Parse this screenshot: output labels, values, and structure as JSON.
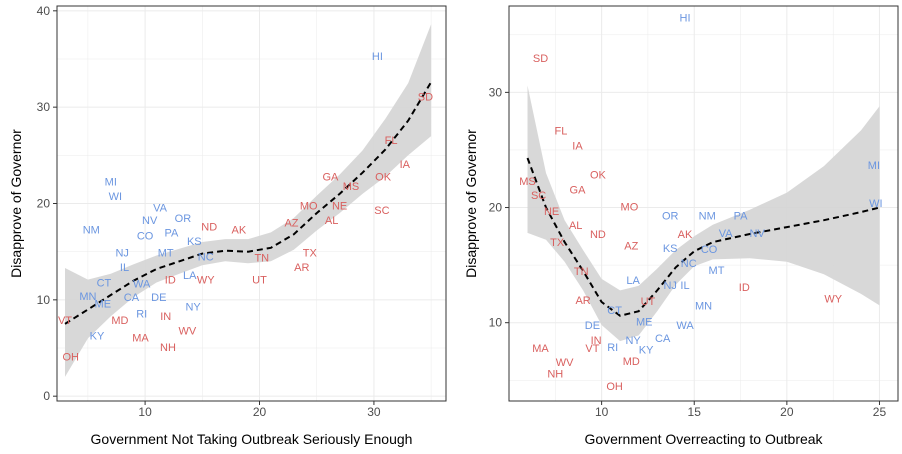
{
  "chart_data": [
    {
      "type": "scatter",
      "title": "",
      "xlabel": "Government Not Taking Outbreak Seriously Enough",
      "ylabel": "Disapprove of Governor",
      "xlim": [
        2.3,
        36.3
      ],
      "ylim": [
        -0.5,
        40.5
      ],
      "xticks": [
        10,
        20,
        30
      ],
      "yticks": [
        0,
        10,
        20,
        30,
        40
      ],
      "grid": true,
      "legend": "none",
      "colors": {
        "blue": "#6b96e0",
        "red": "#d9605f",
        "band": "#d4d4d4",
        "line": "#000000"
      },
      "trend": {
        "x": [
          3,
          5,
          7,
          9,
          11,
          13,
          15,
          17,
          19,
          21,
          23,
          25,
          27,
          29,
          31,
          33,
          35
        ],
        "y": [
          7.5,
          9.0,
          10.5,
          12.0,
          13.2,
          14.0,
          14.8,
          15.1,
          15.0,
          15.4,
          16.8,
          19.0,
          21.0,
          23.2,
          25.6,
          28.6,
          32.6
        ],
        "lower": [
          2.0,
          6.0,
          8.3,
          10.3,
          11.8,
          12.7,
          13.6,
          14.0,
          13.8,
          14.0,
          15.2,
          17.2,
          19.0,
          21.0,
          22.8,
          25.0,
          27.0
        ],
        "upper": [
          13.3,
          12.1,
          12.7,
          13.7,
          14.6,
          15.3,
          16.0,
          16.3,
          16.3,
          17.0,
          18.5,
          20.8,
          23.0,
          25.5,
          28.8,
          32.5,
          38.6
        ]
      },
      "points": [
        {
          "label": "HI",
          "x": 30.3,
          "y": 35.2,
          "color": "blue"
        },
        {
          "label": "SD",
          "x": 34.5,
          "y": 31.0,
          "color": "red"
        },
        {
          "label": "FL",
          "x": 31.5,
          "y": 26.5,
          "color": "red"
        },
        {
          "label": "IA",
          "x": 32.7,
          "y": 24.0,
          "color": "red"
        },
        {
          "label": "GA",
          "x": 26.2,
          "y": 22.7,
          "color": "red"
        },
        {
          "label": "OK",
          "x": 30.8,
          "y": 22.7,
          "color": "red"
        },
        {
          "label": "MS",
          "x": 28.0,
          "y": 21.7,
          "color": "red"
        },
        {
          "label": "MO",
          "x": 24.3,
          "y": 19.7,
          "color": "red"
        },
        {
          "label": "NE",
          "x": 27.0,
          "y": 19.7,
          "color": "red"
        },
        {
          "label": "SC",
          "x": 30.7,
          "y": 19.2,
          "color": "red"
        },
        {
          "label": "AZ",
          "x": 22.8,
          "y": 17.9,
          "color": "red"
        },
        {
          "label": "AL",
          "x": 26.3,
          "y": 18.2,
          "color": "red"
        },
        {
          "label": "ND",
          "x": 15.6,
          "y": 17.5,
          "color": "red"
        },
        {
          "label": "AK",
          "x": 18.2,
          "y": 17.2,
          "color": "red"
        },
        {
          "label": "TX",
          "x": 24.4,
          "y": 14.8,
          "color": "red"
        },
        {
          "label": "TN",
          "x": 20.2,
          "y": 14.3,
          "color": "red"
        },
        {
          "label": "AR",
          "x": 23.7,
          "y": 13.3,
          "color": "red"
        },
        {
          "label": "UT",
          "x": 20.0,
          "y": 12.0,
          "color": "red"
        },
        {
          "label": "WY",
          "x": 15.3,
          "y": 12.0,
          "color": "red"
        },
        {
          "label": "ID",
          "x": 12.2,
          "y": 12.0,
          "color": "red"
        },
        {
          "label": "MI",
          "x": 7.0,
          "y": 22.2,
          "color": "blue"
        },
        {
          "label": "WI",
          "x": 7.4,
          "y": 20.7,
          "color": "blue"
        },
        {
          "label": "NM",
          "x": 5.3,
          "y": 17.2,
          "color": "blue"
        },
        {
          "label": "VA",
          "x": 11.3,
          "y": 19.5,
          "color": "blue"
        },
        {
          "label": "NV",
          "x": 10.4,
          "y": 18.2,
          "color": "blue"
        },
        {
          "label": "OR",
          "x": 13.3,
          "y": 18.4,
          "color": "blue"
        },
        {
          "label": "PA",
          "x": 12.3,
          "y": 16.9,
          "color": "blue"
        },
        {
          "label": "CO",
          "x": 10.0,
          "y": 16.6,
          "color": "blue"
        },
        {
          "label": "NJ",
          "x": 8.0,
          "y": 14.8,
          "color": "blue"
        },
        {
          "label": "KS",
          "x": 14.3,
          "y": 16.0,
          "color": "blue"
        },
        {
          "label": "MT",
          "x": 11.8,
          "y": 14.8,
          "color": "blue"
        },
        {
          "label": "NC",
          "x": 15.3,
          "y": 14.4,
          "color": "blue"
        },
        {
          "label": "IL",
          "x": 8.2,
          "y": 13.3,
          "color": "blue"
        },
        {
          "label": "LA",
          "x": 13.9,
          "y": 12.5,
          "color": "blue"
        },
        {
          "label": "CT",
          "x": 6.4,
          "y": 11.7,
          "color": "blue"
        },
        {
          "label": "WA",
          "x": 9.7,
          "y": 11.6,
          "color": "blue"
        },
        {
          "label": "MN",
          "x": 5.0,
          "y": 10.3,
          "color": "blue"
        },
        {
          "label": "CA",
          "x": 8.8,
          "y": 10.2,
          "color": "blue"
        },
        {
          "label": "DE",
          "x": 11.2,
          "y": 10.2,
          "color": "blue"
        },
        {
          "label": "ME",
          "x": 6.3,
          "y": 9.5,
          "color": "blue"
        },
        {
          "label": "NY",
          "x": 14.2,
          "y": 9.2,
          "color": "blue"
        },
        {
          "label": "RI",
          "x": 9.7,
          "y": 8.5,
          "color": "blue"
        },
        {
          "label": "VT",
          "x": 3.0,
          "y": 7.8,
          "color": "red"
        },
        {
          "label": "MD",
          "x": 7.8,
          "y": 7.8,
          "color": "red"
        },
        {
          "label": "IN",
          "x": 11.8,
          "y": 8.2,
          "color": "red"
        },
        {
          "label": "WV",
          "x": 13.7,
          "y": 6.7,
          "color": "red"
        },
        {
          "label": "KY",
          "x": 5.8,
          "y": 6.2,
          "color": "blue"
        },
        {
          "label": "MA",
          "x": 9.6,
          "y": 6.0,
          "color": "red"
        },
        {
          "label": "NH",
          "x": 12.0,
          "y": 5.0,
          "color": "red"
        },
        {
          "label": "OH",
          "x": 3.5,
          "y": 4.0,
          "color": "red"
        }
      ]
    },
    {
      "type": "scatter",
      "title": "",
      "xlabel": "Government Overreacting to Outbreak",
      "ylabel": "Disapprove of Governor",
      "xlim": [
        5.0,
        26.0
      ],
      "ylim": [
        3.2,
        37.5
      ],
      "xticks": [
        10,
        15,
        20,
        25
      ],
      "yticks": [
        10,
        20,
        30
      ],
      "grid": true,
      "legend": "none",
      "colors": {
        "blue": "#6b96e0",
        "red": "#d9605f",
        "band": "#d4d4d4",
        "line": "#000000"
      },
      "trend": {
        "x": [
          6.0,
          7.0,
          8.0,
          9.0,
          10.0,
          11.0,
          12.0,
          13.0,
          14.0,
          15.0,
          16.0,
          18.0,
          20.0,
          22.0,
          24.0,
          25.0
        ],
        "y": [
          24.3,
          20.0,
          17.0,
          14.5,
          11.8,
          10.6,
          11.0,
          12.8,
          14.8,
          16.2,
          17.0,
          17.7,
          18.3,
          18.9,
          19.6,
          20.0
        ],
        "lower": [
          17.8,
          17.2,
          15.3,
          12.8,
          9.8,
          8.4,
          8.9,
          11.0,
          13.3,
          14.9,
          15.5,
          15.6,
          15.3,
          14.2,
          12.5,
          11.5
        ],
        "upper": [
          30.6,
          23.0,
          18.9,
          16.3,
          13.8,
          12.8,
          13.2,
          14.7,
          16.3,
          17.5,
          18.5,
          19.8,
          21.3,
          23.6,
          26.7,
          28.8
        ]
      },
      "points": [
        {
          "label": "HI",
          "x": 14.5,
          "y": 36.4,
          "color": "blue"
        },
        {
          "label": "SD",
          "x": 6.7,
          "y": 32.9,
          "color": "red"
        },
        {
          "label": "FL",
          "x": 7.8,
          "y": 26.6,
          "color": "red"
        },
        {
          "label": "IA",
          "x": 8.7,
          "y": 25.3,
          "color": "red"
        },
        {
          "label": "OK",
          "x": 9.8,
          "y": 22.8,
          "color": "red"
        },
        {
          "label": "MS",
          "x": 6.0,
          "y": 22.2,
          "color": "red"
        },
        {
          "label": "GA",
          "x": 8.7,
          "y": 21.5,
          "color": "red"
        },
        {
          "label": "SC",
          "x": 6.6,
          "y": 21.0,
          "color": "red"
        },
        {
          "label": "NE",
          "x": 7.3,
          "y": 19.6,
          "color": "red"
        },
        {
          "label": "MO",
          "x": 11.5,
          "y": 20.0,
          "color": "red"
        },
        {
          "label": "AL",
          "x": 8.6,
          "y": 18.4,
          "color": "red"
        },
        {
          "label": "ND",
          "x": 9.8,
          "y": 17.6,
          "color": "red"
        },
        {
          "label": "TX",
          "x": 7.6,
          "y": 16.9,
          "color": "red"
        },
        {
          "label": "AZ",
          "x": 11.6,
          "y": 16.6,
          "color": "red"
        },
        {
          "label": "AK",
          "x": 14.5,
          "y": 17.6,
          "color": "red"
        },
        {
          "label": "TN",
          "x": 8.9,
          "y": 14.4,
          "color": "red"
        },
        {
          "label": "AR",
          "x": 9.0,
          "y": 11.9,
          "color": "red"
        },
        {
          "label": "UT",
          "x": 12.5,
          "y": 11.8,
          "color": "red"
        },
        {
          "label": "ID",
          "x": 17.7,
          "y": 13.0,
          "color": "red"
        },
        {
          "label": "WY",
          "x": 22.5,
          "y": 12.0,
          "color": "red"
        },
        {
          "label": "OR",
          "x": 13.7,
          "y": 19.2,
          "color": "blue"
        },
        {
          "label": "NM",
          "x": 15.7,
          "y": 19.2,
          "color": "blue"
        },
        {
          "label": "PA",
          "x": 17.5,
          "y": 19.2,
          "color": "blue"
        },
        {
          "label": "VA",
          "x": 16.7,
          "y": 17.7,
          "color": "blue"
        },
        {
          "label": "NV",
          "x": 18.4,
          "y": 17.7,
          "color": "blue"
        },
        {
          "label": "MI",
          "x": 24.7,
          "y": 23.6,
          "color": "blue"
        },
        {
          "label": "WI",
          "x": 24.8,
          "y": 20.3,
          "color": "blue"
        },
        {
          "label": "KS",
          "x": 13.7,
          "y": 16.4,
          "color": "blue"
        },
        {
          "label": "CO",
          "x": 15.8,
          "y": 16.3,
          "color": "blue"
        },
        {
          "label": "NC",
          "x": 14.7,
          "y": 15.1,
          "color": "blue"
        },
        {
          "label": "MT",
          "x": 16.2,
          "y": 14.5,
          "color": "blue"
        },
        {
          "label": "NJ",
          "x": 13.7,
          "y": 13.2,
          "color": "blue"
        },
        {
          "label": "IL",
          "x": 14.5,
          "y": 13.2,
          "color": "blue"
        },
        {
          "label": "LA",
          "x": 11.7,
          "y": 13.6,
          "color": "blue"
        },
        {
          "label": "MN",
          "x": 15.5,
          "y": 11.4,
          "color": "blue"
        },
        {
          "label": "CT",
          "x": 10.7,
          "y": 11.0,
          "color": "blue"
        },
        {
          "label": "ME",
          "x": 12.3,
          "y": 10.0,
          "color": "blue"
        },
        {
          "label": "DE",
          "x": 9.5,
          "y": 9.7,
          "color": "blue"
        },
        {
          "label": "WA",
          "x": 14.5,
          "y": 9.7,
          "color": "blue"
        },
        {
          "label": "IN",
          "x": 9.7,
          "y": 8.4,
          "color": "red"
        },
        {
          "label": "NY",
          "x": 11.7,
          "y": 8.4,
          "color": "blue"
        },
        {
          "label": "CA",
          "x": 13.3,
          "y": 8.6,
          "color": "blue"
        },
        {
          "label": "MA",
          "x": 6.7,
          "y": 7.7,
          "color": "red"
        },
        {
          "label": "VT",
          "x": 9.5,
          "y": 7.7,
          "color": "red"
        },
        {
          "label": "RI",
          "x": 10.6,
          "y": 7.8,
          "color": "blue"
        },
        {
          "label": "KY",
          "x": 12.4,
          "y": 7.6,
          "color": "blue"
        },
        {
          "label": "MD",
          "x": 11.6,
          "y": 6.6,
          "color": "red"
        },
        {
          "label": "WV",
          "x": 8.0,
          "y": 6.5,
          "color": "red"
        },
        {
          "label": "NH",
          "x": 7.5,
          "y": 5.5,
          "color": "red"
        },
        {
          "label": "OH",
          "x": 10.7,
          "y": 4.4,
          "color": "red"
        }
      ]
    }
  ]
}
